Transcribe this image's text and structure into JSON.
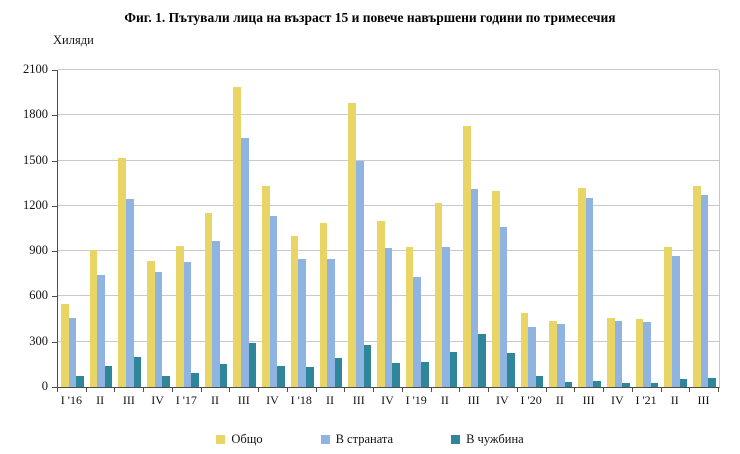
{
  "title": "Фиг. 1. Пътували лица на възраст 15 и повече навършени години по тримесечия",
  "y_axis": {
    "unit_label": "Хиляди",
    "ticks": [
      0,
      300,
      600,
      900,
      1200,
      1500,
      1800,
      2100
    ],
    "max": 2100
  },
  "colors": {
    "total": "#e8d565",
    "domestic": "#8fb4e1",
    "abroad": "#2f8599",
    "gridline": "#c9c9c9",
    "axis": "#4d4d4d"
  },
  "legend": [
    {
      "label": "Общо",
      "color": "#e8d565"
    },
    {
      "label": "В страната",
      "color": "#8fb4e1"
    },
    {
      "label": "В чужбина",
      "color": "#2f8599"
    }
  ],
  "chart_data": {
    "type": "bar",
    "title": "Фиг. 1. Пътували лица на възраст 15 и повече навършени години по тримесечия",
    "xlabel": "",
    "ylabel": "Хиляди",
    "ylim": [
      0,
      2100
    ],
    "grid": true,
    "legend_position": "bottom",
    "categories": [
      "I '16",
      "II",
      "III",
      "IV",
      "I '17",
      "II",
      "III",
      "IV",
      "I '18",
      "II",
      "III",
      "IV",
      "I '19",
      "II",
      "III",
      "IV",
      "I '20",
      "II",
      "III",
      "IV",
      "I '21",
      "II",
      "III"
    ],
    "series": [
      {
        "name": "Общо",
        "color": "#e8d565",
        "values": [
          550,
          905,
          1520,
          835,
          935,
          1150,
          1990,
          1330,
          1000,
          1085,
          1880,
          1100,
          925,
          1220,
          1730,
          1300,
          490,
          440,
          1320,
          460,
          450,
          930,
          1330
        ]
      },
      {
        "name": "В страната",
        "color": "#8fb4e1",
        "values": [
          460,
          740,
          1245,
          765,
          830,
          965,
          1650,
          1130,
          850,
          845,
          1500,
          920,
          730,
          925,
          1310,
          1060,
          400,
          415,
          1250,
          440,
          430,
          865,
          1270
        ]
      },
      {
        "name": "В чужбина",
        "color": "#2f8599",
        "values": [
          75,
          140,
          200,
          75,
          90,
          150,
          290,
          140,
          130,
          190,
          280,
          160,
          165,
          235,
          350,
          225,
          70,
          30,
          40,
          25,
          25,
          55,
          60
        ]
      }
    ]
  }
}
